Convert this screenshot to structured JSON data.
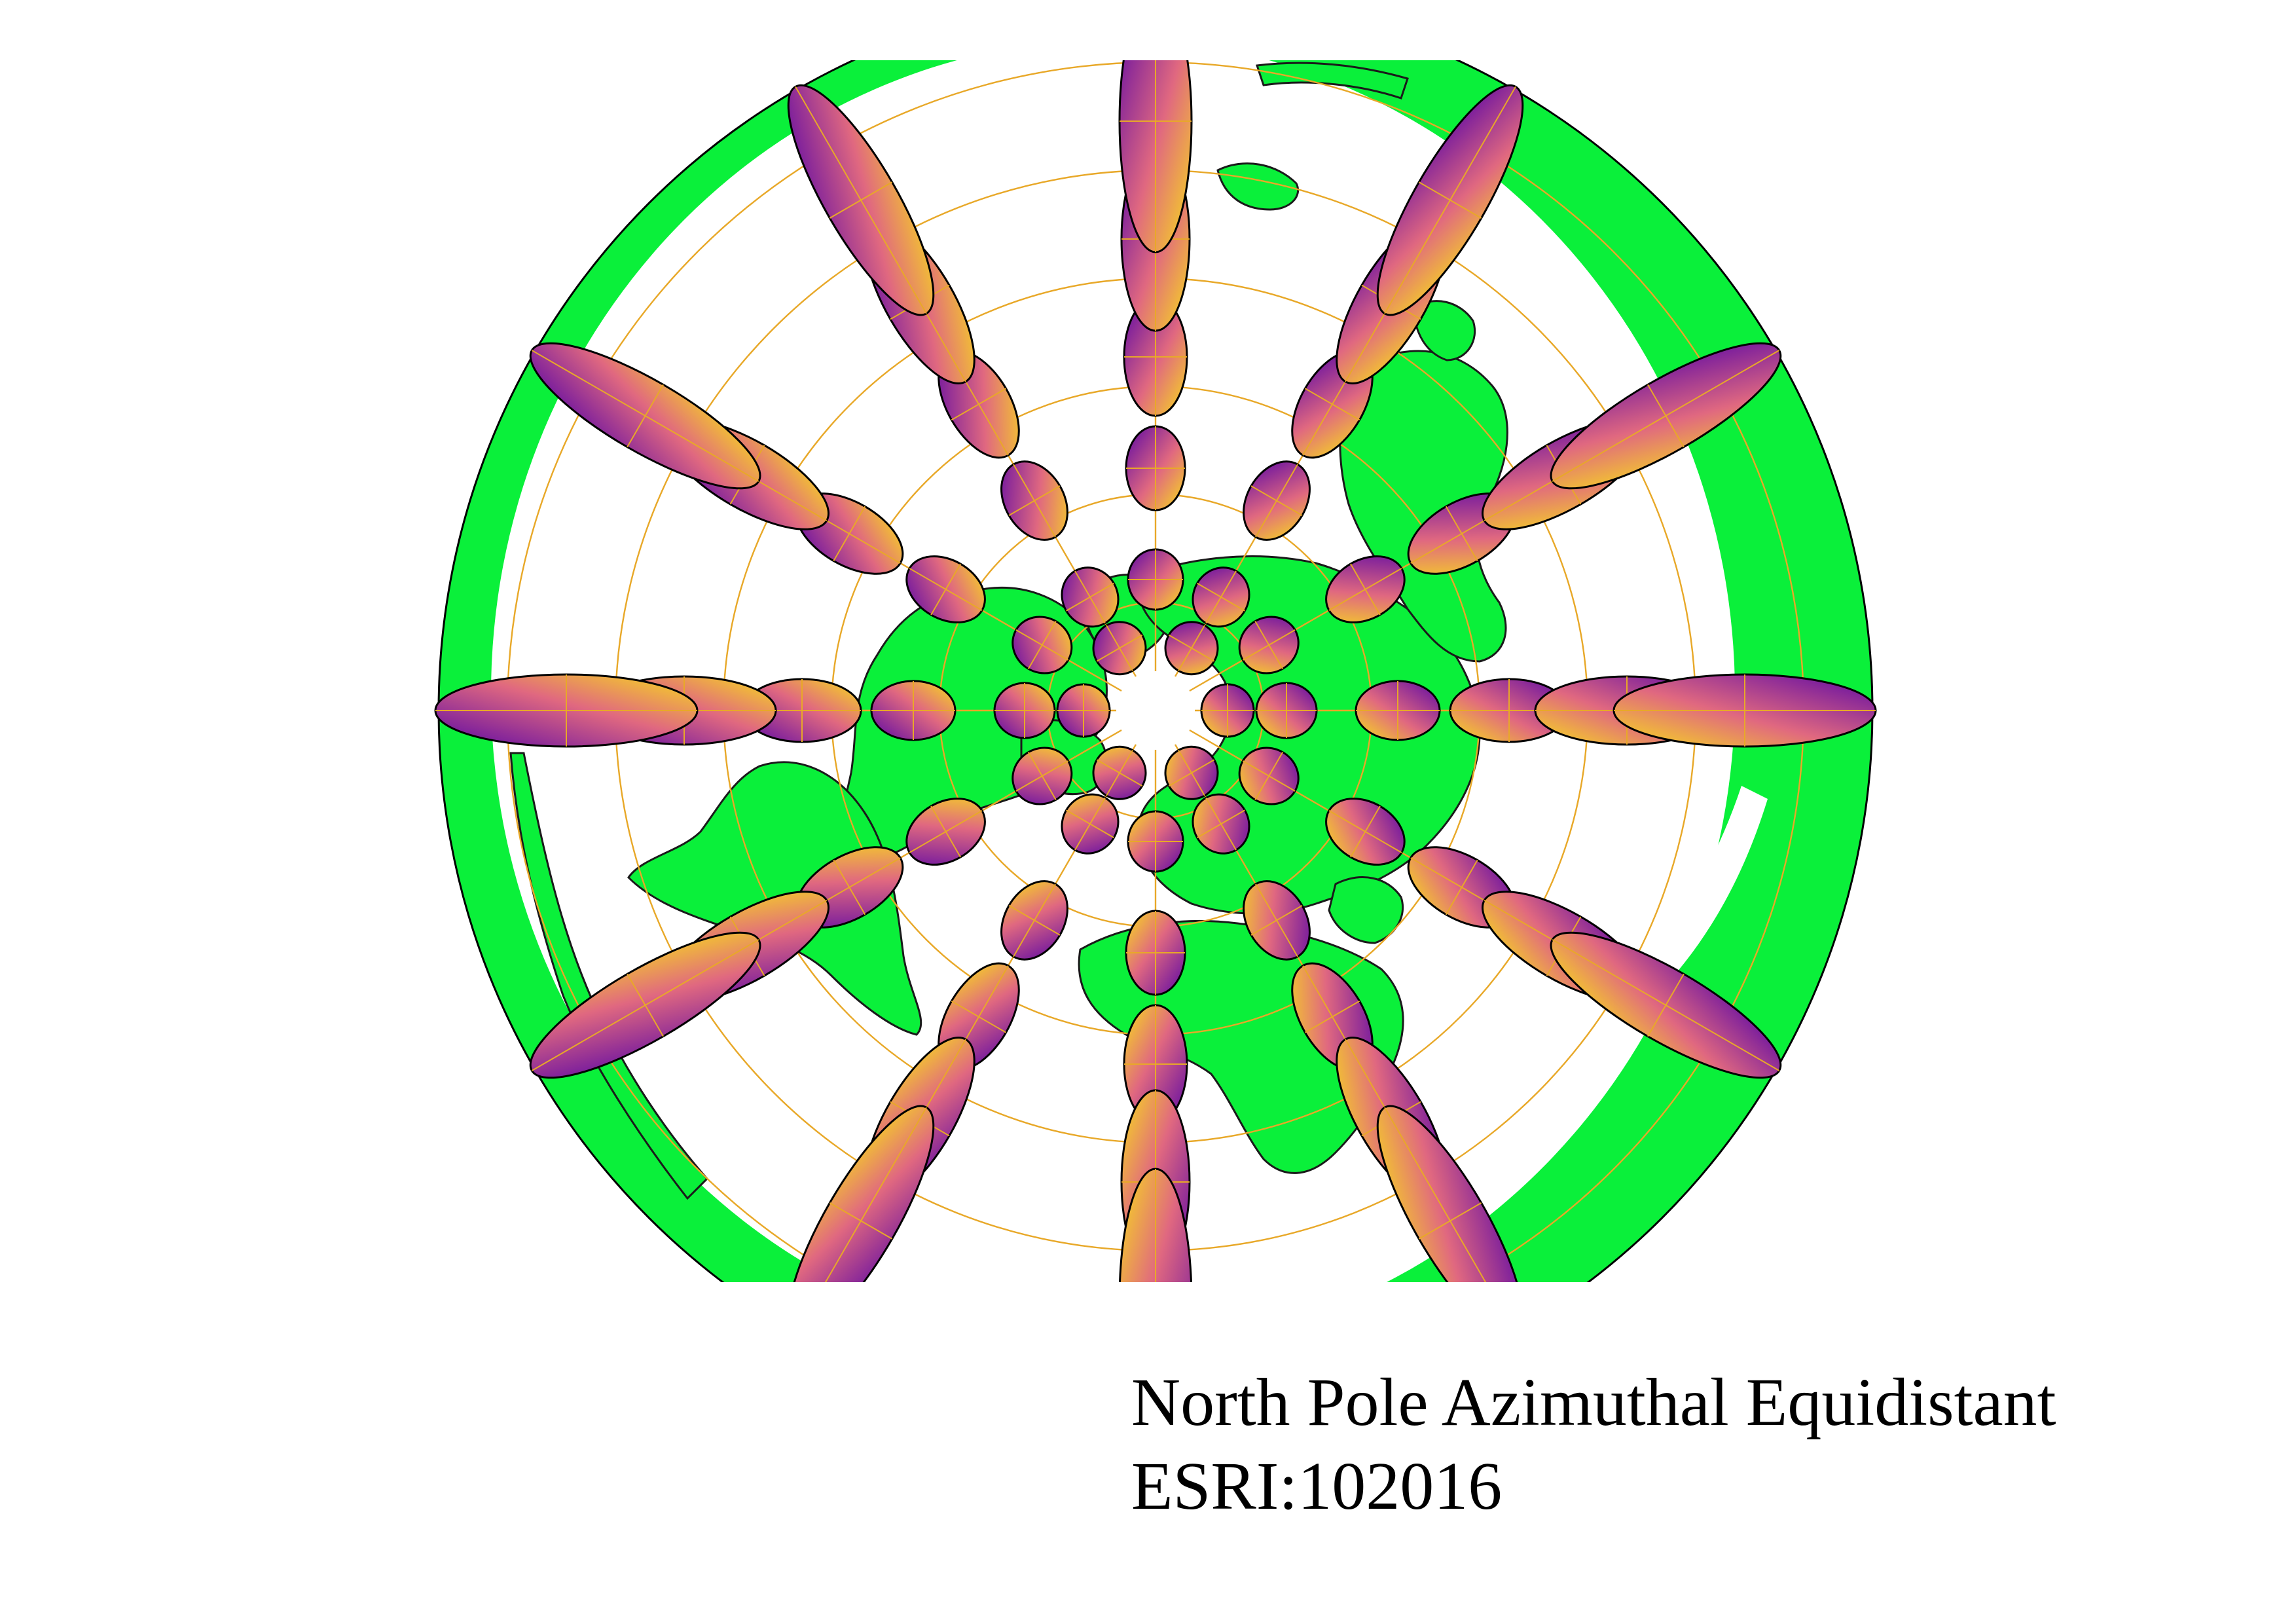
{
  "map": {
    "title": "North Pole Azimuthal Equidistant",
    "crs_code": "ESRI:102016",
    "projection": "azimuthal equidistant",
    "center": "north pole",
    "land_color": "#0AF03A",
    "coastline_color": "#1a1a1a",
    "graticule_color": "#E8A828",
    "background_color": "#FFFFFF",
    "indicatrix_gradient": [
      "#5A06A6",
      "#E06880",
      "#F8E018"
    ],
    "indicatrix_outline": "#000000",
    "graticule": {
      "meridian_spacing_deg": 30,
      "parallel_spacing_deg": 30
    },
    "visible_features": [
      "North America",
      "South America",
      "Europe",
      "Africa",
      "Asia",
      "Australia",
      "Greenland",
      "Arctic islands"
    ]
  }
}
